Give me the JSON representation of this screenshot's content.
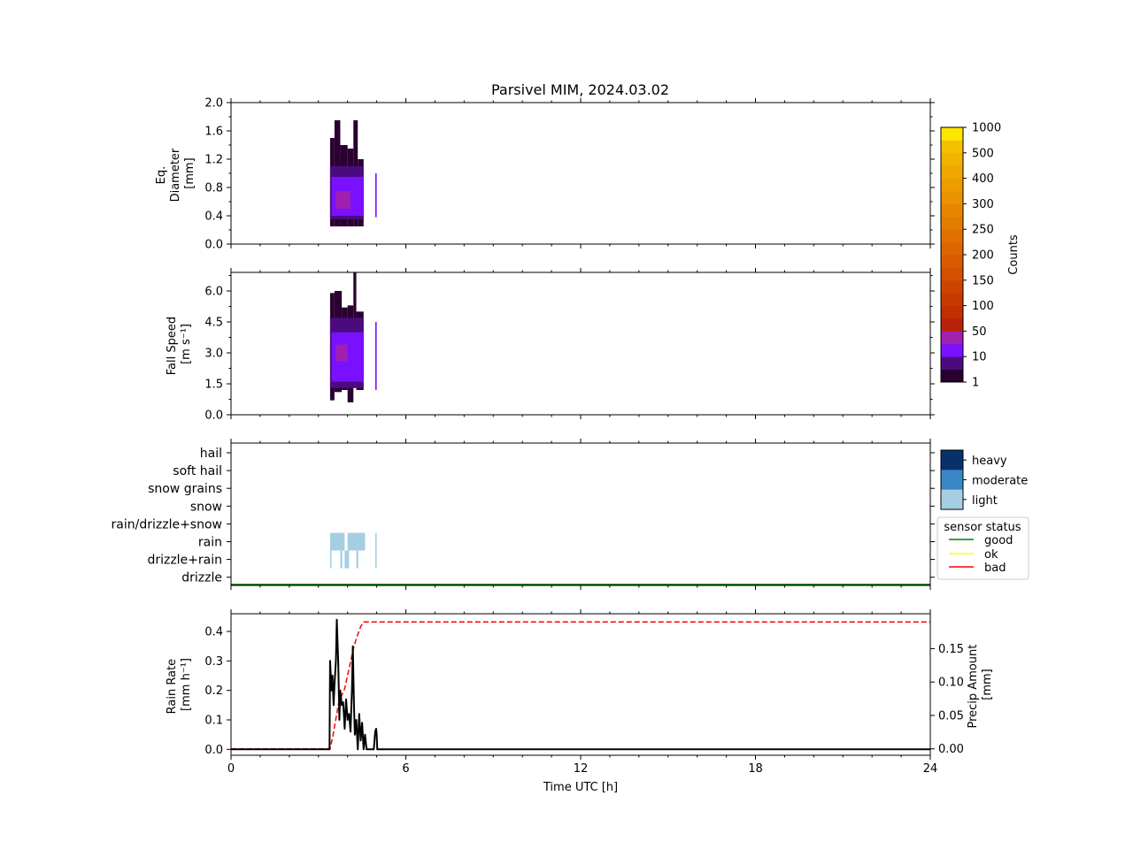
{
  "figure": {
    "title": "Parsivel MIM, 2024.03.02",
    "xlabel": "Time UTC [h]"
  },
  "colors": {
    "background": "#ffffff",
    "rain_rate_line": "#000000",
    "precip_amount_line": "#ff0000",
    "status_good": "#008000",
    "status_ok": "#ffff00",
    "status_bad": "#ff0000"
  },
  "chart_data": [
    {
      "type": "heatmap",
      "panel": "diameter",
      "ylabel": [
        "Eq.",
        "Diameter",
        "[mm]"
      ],
      "xlim": [
        0,
        24
      ],
      "ylim": [
        0,
        2.0
      ],
      "xticks": [
        0,
        6,
        12,
        18,
        24
      ],
      "yticks": [
        "0.0",
        "0.4",
        "0.8",
        "1.2",
        "1.6",
        "2.0"
      ],
      "cells": [
        {
          "t0": 3.4,
          "t1": 3.55,
          "y0": 0.25,
          "y1": 1.5,
          "level": 1
        },
        {
          "t0": 3.55,
          "t1": 3.75,
          "y0": 0.25,
          "y1": 1.75,
          "level": 1
        },
        {
          "t0": 3.75,
          "t1": 4.0,
          "y0": 0.25,
          "y1": 1.4,
          "level": 1
        },
        {
          "t0": 4.0,
          "t1": 4.2,
          "y0": 0.25,
          "y1": 1.35,
          "level": 1
        },
        {
          "t0": 4.2,
          "t1": 4.35,
          "y0": 0.25,
          "y1": 1.75,
          "level": 1
        },
        {
          "t0": 4.35,
          "t1": 4.55,
          "y0": 0.25,
          "y1": 1.2,
          "level": 1
        },
        {
          "t0": 3.4,
          "t1": 4.55,
          "y0": 0.35,
          "y1": 1.1,
          "level": 2
        },
        {
          "t0": 3.45,
          "t1": 4.55,
          "y0": 0.4,
          "y1": 0.95,
          "level": 3
        },
        {
          "t0": 3.6,
          "t1": 4.1,
          "y0": 0.5,
          "y1": 0.75,
          "level": 4
        },
        {
          "t0": 4.95,
          "t1": 5.0,
          "y0": 0.38,
          "y1": 1.0,
          "level": 3
        }
      ]
    },
    {
      "type": "heatmap",
      "panel": "fall_speed",
      "ylabel": [
        "Fall Speed",
        "[m s⁻¹]"
      ],
      "xlim": [
        0,
        24
      ],
      "ylim": [
        0,
        6.9
      ],
      "xticks": [
        0,
        6,
        12,
        18,
        24
      ],
      "yticks": [
        "0.0",
        "1.5",
        "3.0",
        "4.5",
        "6.0"
      ],
      "cells": [
        {
          "t0": 3.4,
          "t1": 3.55,
          "y0": 0.7,
          "y1": 5.9,
          "level": 1
        },
        {
          "t0": 3.55,
          "t1": 3.8,
          "y0": 1.1,
          "y1": 6.0,
          "level": 1
        },
        {
          "t0": 3.8,
          "t1": 4.0,
          "y0": 1.2,
          "y1": 5.2,
          "level": 1
        },
        {
          "t0": 4.0,
          "t1": 4.2,
          "y0": 0.6,
          "y1": 5.3,
          "level": 1
        },
        {
          "t0": 4.2,
          "t1": 4.3,
          "y0": 1.3,
          "y1": 6.9,
          "level": 1
        },
        {
          "t0": 4.3,
          "t1": 4.55,
          "y0": 1.2,
          "y1": 5.0,
          "level": 1
        },
        {
          "t0": 3.4,
          "t1": 4.55,
          "y0": 1.3,
          "y1": 4.7,
          "level": 2
        },
        {
          "t0": 3.45,
          "t1": 4.55,
          "y0": 1.6,
          "y1": 4.0,
          "level": 3
        },
        {
          "t0": 3.6,
          "t1": 4.0,
          "y0": 2.6,
          "y1": 3.4,
          "level": 4
        },
        {
          "t0": 4.95,
          "t1": 5.0,
          "y0": 1.2,
          "y1": 4.5,
          "level": 3
        }
      ]
    },
    {
      "type": "heatmap",
      "panel": "precip_type",
      "xlim": [
        0,
        24
      ],
      "categories": [
        "hail",
        "soft hail",
        "snow grains",
        "snow",
        "rain/drizzle+snow",
        "rain",
        "drizzle+rain",
        "drizzle"
      ],
      "cells": [
        {
          "t0": 3.4,
          "t1": 3.9,
          "category": "rain",
          "intensity": "light"
        },
        {
          "t0": 4.0,
          "t1": 4.6,
          "category": "rain",
          "intensity": "light"
        },
        {
          "t0": 4.95,
          "t1": 5.0,
          "category": "rain",
          "intensity": "light"
        },
        {
          "t0": 3.4,
          "t1": 3.45,
          "category": "drizzle+rain",
          "intensity": "light"
        },
        {
          "t0": 3.75,
          "t1": 3.82,
          "category": "drizzle+rain",
          "intensity": "light"
        },
        {
          "t0": 3.9,
          "t1": 4.05,
          "category": "drizzle+rain",
          "intensity": "light"
        },
        {
          "t0": 4.3,
          "t1": 4.37,
          "category": "drizzle+rain",
          "intensity": "light"
        },
        {
          "t0": 4.95,
          "t1": 5.0,
          "category": "drizzle+rain",
          "intensity": "light"
        }
      ],
      "sensor_status": {
        "t0": 0,
        "t1": 24,
        "status": "good"
      }
    },
    {
      "type": "line",
      "panel": "rain_rate",
      "ylabel": [
        "Rain Rate",
        "[mm h⁻¹]"
      ],
      "y2label": [
        "Precip Amount",
        "[mm]"
      ],
      "xlim": [
        0,
        24
      ],
      "ylim": [
        -0.02,
        0.46
      ],
      "y2lim": [
        -0.0096,
        0.2022
      ],
      "yticks": [
        "0.0",
        "0.1",
        "0.2",
        "0.3",
        "0.4"
      ],
      "y2ticks": [
        "0.00",
        "0.05",
        "0.10",
        "0.15"
      ],
      "series": [
        {
          "axis": "left",
          "style": "solid",
          "x": [
            0,
            3.38,
            3.4,
            3.45,
            3.48,
            3.52,
            3.55,
            3.6,
            3.63,
            3.68,
            3.72,
            3.75,
            3.8,
            3.85,
            3.9,
            3.95,
            4.0,
            4.05,
            4.1,
            4.15,
            4.18,
            4.22,
            4.25,
            4.3,
            4.35,
            4.4,
            4.45,
            4.5,
            4.55,
            4.6,
            4.65,
            4.7,
            4.75,
            4.8,
            4.85,
            4.9,
            4.95,
            4.98,
            5.0,
            5.02,
            24
          ],
          "y": [
            0,
            0,
            0.3,
            0.2,
            0.25,
            0.15,
            0.22,
            0.3,
            0.44,
            0.3,
            0.1,
            0.2,
            0.15,
            0.16,
            0.07,
            0.17,
            0.1,
            0.12,
            0.06,
            0.2,
            0.35,
            0.15,
            0.05,
            0.1,
            0.0,
            0.12,
            0.03,
            0.09,
            0.0,
            0.05,
            0.0,
            0.0,
            0.0,
            0.0,
            0.0,
            0.0,
            0.06,
            0.07,
            0.05,
            0.0,
            0
          ]
        },
        {
          "axis": "right",
          "style": "dashed",
          "x": [
            0,
            3.4,
            3.5,
            3.7,
            3.9,
            4.1,
            4.2,
            4.3,
            4.45,
            4.55,
            5.0,
            24
          ],
          "y": [
            0,
            0,
            0.02,
            0.07,
            0.09,
            0.13,
            0.15,
            0.165,
            0.183,
            0.19,
            0.19,
            0.19
          ]
        }
      ]
    }
  ],
  "colorbar_counts": {
    "label": "Counts",
    "ticks": [
      "1",
      "10",
      "50",
      "100",
      "150",
      "200",
      "250",
      "300",
      "400",
      "500",
      "1000"
    ],
    "colors": [
      "#2a0030",
      "#4b0b7e",
      "#7a10ff",
      "#a020b0",
      "#b8200a",
      "#c03000",
      "#c63a00",
      "#cc4500",
      "#d25000",
      "#d85a00",
      "#dc6500",
      "#e07000",
      "#e47c00",
      "#e88600",
      "#eb9200",
      "#ee9c00",
      "#f0a800",
      "#f2b200",
      "#f4c000",
      "#ffe600"
    ]
  },
  "colorbar_intensity": {
    "labels": [
      "heavy",
      "moderate",
      "light"
    ],
    "colors": [
      "#08306b",
      "#3a87c8",
      "#a6cee3"
    ]
  },
  "legend_status": {
    "title": "sensor status",
    "entries": [
      "good",
      "ok",
      "bad"
    ]
  }
}
